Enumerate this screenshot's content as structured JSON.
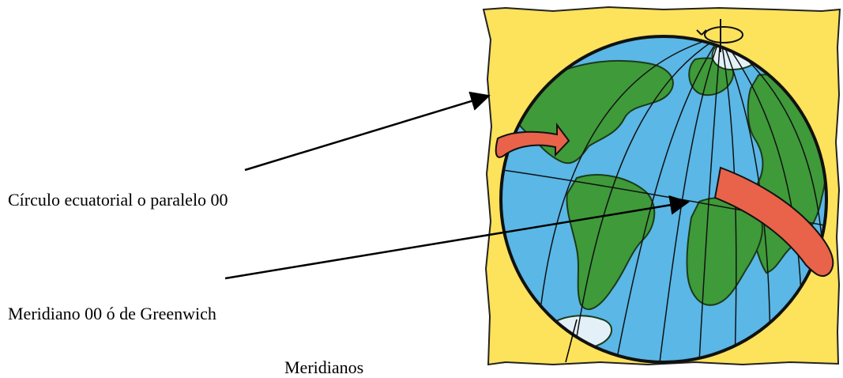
{
  "labels": {
    "equator": "Círculo ecuatorial o paralelo 00",
    "greenwich": "Meridiano 00 ó de Greenwich",
    "meridians": "Meridianos"
  },
  "colors": {
    "paper": "#fde25b",
    "ocean": "#5ab7e6",
    "land": "#3f9a3a",
    "ice": "#e3f0f8",
    "arrow_band": "#e8634a",
    "outline": "#111111"
  },
  "illustration": {
    "icons": [
      "globe-icon",
      "rotation-symbol-icon",
      "rotation-arrow-icon"
    ]
  }
}
